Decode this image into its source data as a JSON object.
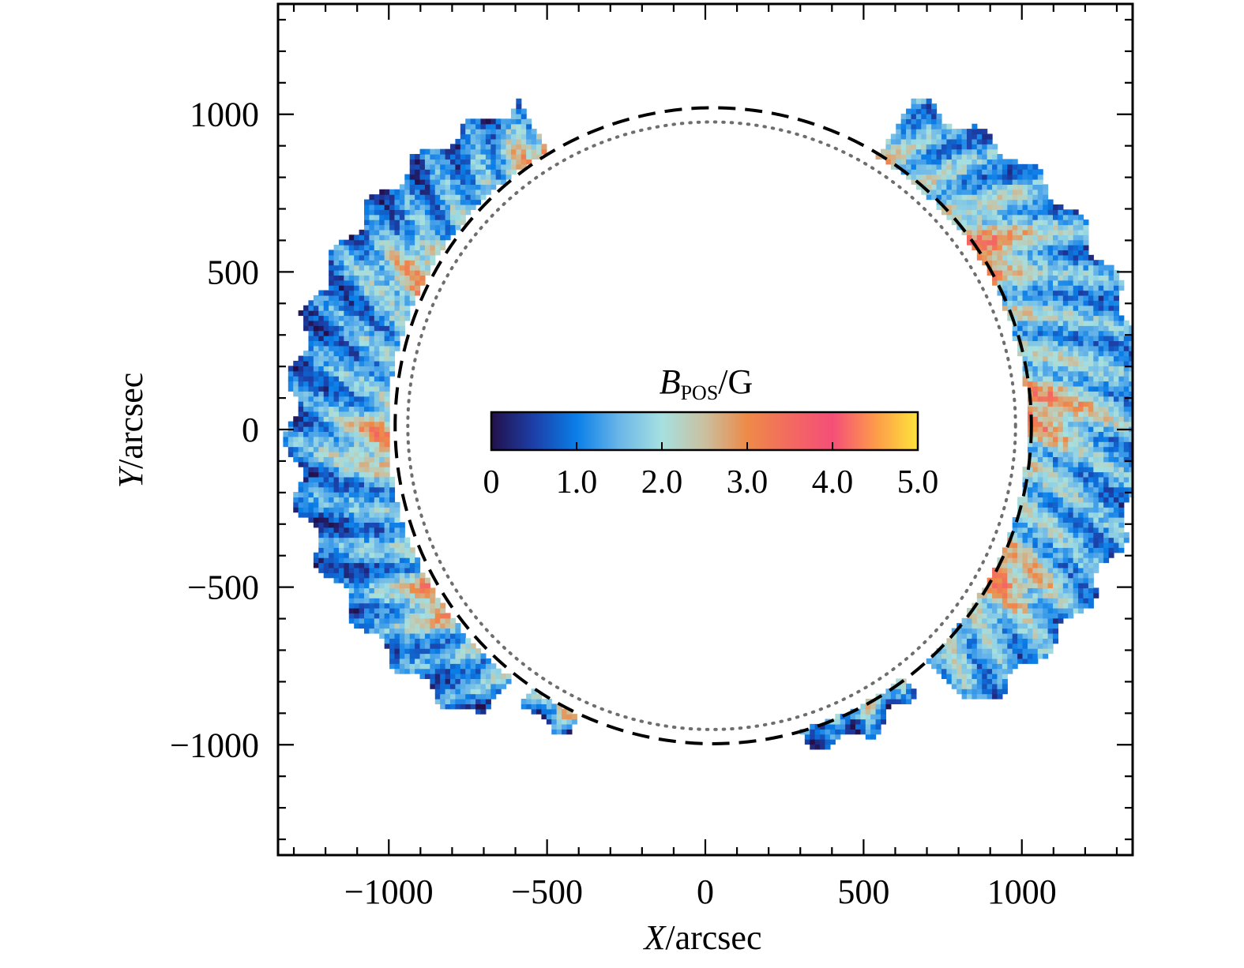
{
  "chart_data": {
    "type": "heatmap",
    "title": "",
    "xlabel": {
      "italic": "X",
      "rest": "/arcsec"
    },
    "ylabel": {
      "italic": "Y",
      "rest": "/arcsec"
    },
    "xlim": [
      -1350,
      1350
    ],
    "ylim": [
      -1350,
      1350
    ],
    "x_ticks": [
      {
        "value": -1000,
        "label": "−1000"
      },
      {
        "value": -500,
        "label": "−500"
      },
      {
        "value": 0,
        "label": "0"
      },
      {
        "value": 500,
        "label": "500"
      },
      {
        "value": 1000,
        "label": "1000"
      }
    ],
    "y_ticks": [
      {
        "value": 1000,
        "label": "1000"
      },
      {
        "value": 500,
        "label": "500"
      },
      {
        "value": 0,
        "label": "0"
      },
      {
        "value": -500,
        "label": "−500"
      },
      {
        "value": -1000,
        "label": "−1000"
      }
    ],
    "minor_tick_step": 100,
    "colorbar": {
      "title_main": "B",
      "title_sub": "POS",
      "title_unit": "/G",
      "range": [
        0,
        5
      ],
      "ticks": [
        {
          "value": 0,
          "label": "0"
        },
        {
          "value": 1,
          "label": "1.0"
        },
        {
          "value": 2,
          "label": "2.0"
        },
        {
          "value": 3,
          "label": "3.0"
        },
        {
          "value": 4,
          "label": "4.0"
        },
        {
          "value": 5,
          "label": "5.0"
        }
      ],
      "stops": [
        {
          "v": 0.0,
          "color": "#23104a"
        },
        {
          "v": 0.5,
          "color": "#1c3fa8"
        },
        {
          "v": 1.0,
          "color": "#0a7ee8"
        },
        {
          "v": 1.5,
          "color": "#6ab6e8"
        },
        {
          "v": 2.0,
          "color": "#a6e0e0"
        },
        {
          "v": 2.5,
          "color": "#c9c0a0"
        },
        {
          "v": 3.0,
          "color": "#ee8a48"
        },
        {
          "v": 3.5,
          "color": "#f36a60"
        },
        {
          "v": 4.0,
          "color": "#f54e78"
        },
        {
          "v": 4.5,
          "color": "#fd9a4a"
        },
        {
          "v": 5.0,
          "color": "#fde43a"
        }
      ]
    },
    "circles": [
      {
        "name": "limb-dashed",
        "center": [
          25,
          12
        ],
        "radius": 1005,
        "style": "dashed"
      },
      {
        "name": "limb-dotted",
        "center": [
          20,
          12
        ],
        "radius": 960,
        "style": "dotted"
      }
    ],
    "data_regions": [
      {
        "name": "west-limb-region",
        "r_inner": 1010,
        "r_outer_max": 1380,
        "angle_from": -47,
        "angle_to": 58,
        "base_value": 1.9
      },
      {
        "name": "east-limb-region",
        "r_inner": 1010,
        "r_outer_max": 1320,
        "angle_from": 120,
        "angle_to": 232,
        "base_value": 1.6
      },
      {
        "name": "southeast-fragment",
        "r_inner": 1000,
        "r_outer_max": 1080,
        "angle_from": 236,
        "angle_to": 246,
        "base_value": 1.3
      },
      {
        "name": "southwest-fragment",
        "r_inner": 1005,
        "r_outer_max": 1090,
        "angle_from": 287,
        "angle_to": 308,
        "base_value": 1.2
      }
    ],
    "grid": false,
    "legend": "center"
  }
}
